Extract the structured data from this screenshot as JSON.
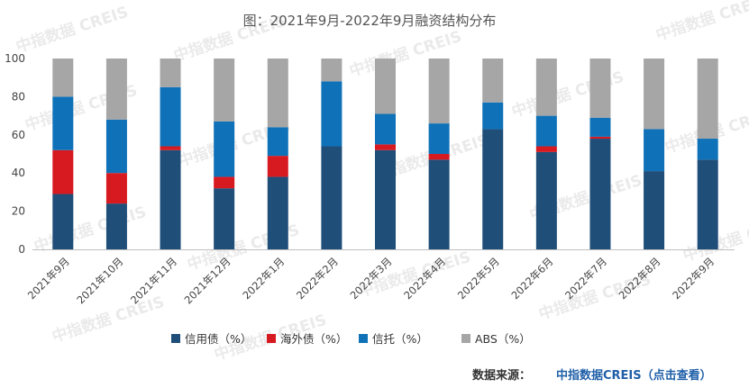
{
  "chart_data": {
    "type": "bar",
    "stacked": true,
    "title": "图：2021年9月-2022年9月融资结构分布",
    "categories": [
      "2021年9月",
      "2021年10月",
      "2021年11月",
      "2021年12月",
      "2022年1月",
      "2022年2月",
      "2022年3月",
      "2022年4月",
      "2022年5月",
      "2022年6月",
      "2022年7月",
      "2022年8月",
      "2022年9月"
    ],
    "series": [
      {
        "name": "信用债（%）",
        "color": "#1f4e79",
        "values": [
          29,
          24,
          52,
          32,
          38,
          54,
          52,
          47,
          63,
          51,
          58,
          41,
          47
        ]
      },
      {
        "name": "海外债（%）",
        "color": "#d71920",
        "values": [
          23,
          16,
          2,
          6,
          11,
          0,
          3,
          3,
          0,
          3,
          1,
          0,
          0
        ]
      },
      {
        "name": "信托（%）",
        "color": "#0f72b8",
        "values": [
          28,
          28,
          31,
          29,
          15,
          34,
          16,
          16,
          14,
          16,
          10,
          22,
          11
        ]
      },
      {
        "name": "ABS（%）",
        "color": "#a6a6a6",
        "values": [
          20,
          32,
          15,
          33,
          36,
          12,
          29,
          34,
          23,
          30,
          31,
          37,
          42
        ]
      }
    ],
    "ylim": [
      0,
      100
    ],
    "yticks": [
      0,
      20,
      40,
      60,
      80,
      100
    ],
    "legend_position": "bottom"
  },
  "source": {
    "label": "数据来源：",
    "brand": "中指数据CREIS（点击查看）"
  },
  "watermark": "中指数据 CREIS"
}
